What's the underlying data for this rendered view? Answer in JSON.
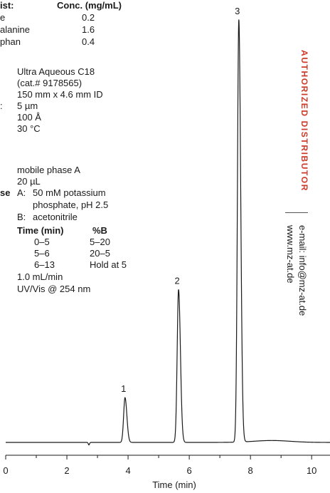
{
  "info": {
    "analyte_header": "ist:",
    "conc_header": "Conc. (mg/mL)",
    "analytes": [
      {
        "name": "e",
        "conc": "0.2"
      },
      {
        "name": "alanine",
        "conc": "1.6"
      },
      {
        "name": "phan",
        "conc": "0.4"
      }
    ],
    "column": [
      "Ultra Aqueous C18",
      "(cat.# 9178565)",
      "150 mm x 4.6 mm ID"
    ],
    "particle_prefix": ":",
    "particle_size": "5 µm",
    "pore_size": "100 Å",
    "temp": "30 °C",
    "diluent": "mobile phase A",
    "injection": "20 µL",
    "mobile_phase_prefix": "se",
    "mobile_a_label": "A:",
    "mobile_a": [
      "50 mM potassium",
      "phosphate, pH 2.5"
    ],
    "mobile_b_label": "B:",
    "mobile_b": "acetonitrile",
    "gradient_headers": [
      "Time (min)",
      "%B"
    ],
    "gradient": [
      {
        "time": "0–5",
        "b": "5–20"
      },
      {
        "time": "5–6",
        "b": "20–5"
      },
      {
        "time": "6–13",
        "b": "Hold at 5"
      }
    ],
    "flow": "1.0 mL/min",
    "detector": "UV/Vis @ 254 nm"
  },
  "sidebar": {
    "authorized": "AUTHORIZED DISTRIBUTOR",
    "email": "e-mail: info@mz-at.de",
    "website": "www.mz-at.de"
  },
  "chart_data": {
    "type": "line",
    "xlabel": "Time (min)",
    "ylabel": "",
    "xlim": [
      0,
      10.6
    ],
    "ylim": [
      0,
      100
    ],
    "x_ticks": [
      0,
      2,
      4,
      6,
      8,
      10
    ],
    "grid": false,
    "peaks": [
      {
        "label": "1",
        "time": 3.9,
        "height": 10.6
      },
      {
        "label": "2",
        "time": 5.65,
        "height": 36.2
      },
      {
        "label": "3",
        "time": 7.62,
        "height": 100
      }
    ]
  },
  "colors": {
    "trace": "#1a1a1a",
    "accent": "#cc3a2a"
  }
}
